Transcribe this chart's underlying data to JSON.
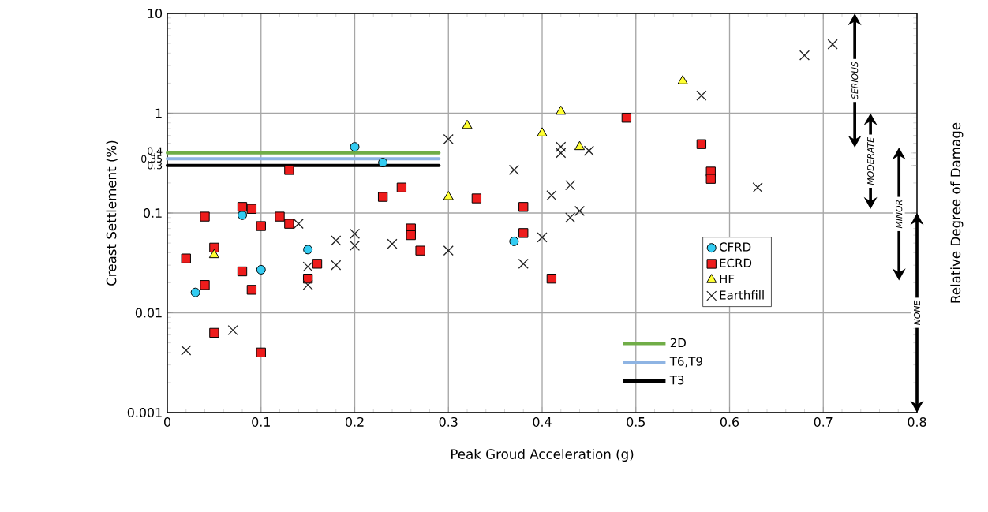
{
  "chart_data": {
    "type": "scatter",
    "xlabel": "Peak Groud Acceleration (g)",
    "ylabel": "Creast Settlement (%)",
    "y2label": "Relative Degree of Damage",
    "xlim": [
      0,
      0.8
    ],
    "ylim": [
      0.001,
      10
    ],
    "log": "y",
    "grid": true,
    "legend": "bottom right",
    "xticks": [
      0,
      0.1,
      0.2,
      0.3,
      0.4,
      0.5,
      0.6,
      0.7,
      0.8
    ],
    "yticks": [
      0.001,
      0.01,
      0.1,
      1,
      10,
      0.3,
      0.35,
      0.4
    ],
    "series": [
      {
        "name": "CFRD",
        "type": "scatter",
        "marker": "circle",
        "color": "#33ccf2",
        "x": [
          0.03,
          0.08,
          0.1,
          0.15,
          0.2,
          0.23,
          0.37
        ],
        "values": [
          0.016,
          0.095,
          0.027,
          0.043,
          0.46,
          0.32,
          0.052
        ]
      },
      {
        "name": "ECRD",
        "type": "scatter",
        "marker": "square",
        "color": "#ee1c1c",
        "x": [
          0.02,
          0.04,
          0.05,
          0.04,
          0.05,
          0.08,
          0.09,
          0.08,
          0.09,
          0.1,
          0.1,
          0.13,
          0.12,
          0.13,
          0.15,
          0.16,
          0.23,
          0.25,
          0.26,
          0.26,
          0.27,
          0.33,
          0.38,
          0.38,
          0.41,
          0.49,
          0.57,
          0.58,
          0.58
        ],
        "values": [
          0.035,
          0.092,
          0.045,
          0.019,
          0.0063,
          0.115,
          0.11,
          0.026,
          0.017,
          0.074,
          0.004,
          0.27,
          0.092,
          0.078,
          0.022,
          0.031,
          0.145,
          0.18,
          0.07,
          0.06,
          0.042,
          0.14,
          0.115,
          0.063,
          0.022,
          0.9,
          0.49,
          0.26,
          0.22
        ]
      },
      {
        "name": "HF",
        "type": "scatter",
        "marker": "triangle",
        "color": "#ffff33",
        "x": [
          0.05,
          0.3,
          0.32,
          0.4,
          0.42,
          0.44,
          0.55
        ],
        "values": [
          0.038,
          0.145,
          0.75,
          0.63,
          1.04,
          0.46,
          2.1
        ]
      },
      {
        "name": "Earthfill",
        "type": "scatter",
        "marker": "cross",
        "color": "#222222",
        "x": [
          0.02,
          0.07,
          0.14,
          0.15,
          0.15,
          0.18,
          0.18,
          0.2,
          0.2,
          0.24,
          0.3,
          0.3,
          0.37,
          0.38,
          0.4,
          0.41,
          0.42,
          0.42,
          0.43,
          0.43,
          0.44,
          0.45,
          0.57,
          0.63,
          0.68,
          0.71
        ],
        "values": [
          0.0042,
          0.0067,
          0.078,
          0.029,
          0.019,
          0.03,
          0.053,
          0.062,
          0.047,
          0.049,
          0.042,
          0.55,
          0.27,
          0.031,
          0.057,
          0.15,
          0.46,
          0.4,
          0.19,
          0.09,
          0.105,
          0.42,
          1.5,
          0.18,
          3.8,
          4.9
        ]
      },
      {
        "name": "2D",
        "type": "line",
        "line_style": "solid",
        "color": "#70ad47",
        "x": [
          0,
          0.29
        ],
        "values": [
          0.4,
          0.4
        ]
      },
      {
        "name": "T6,T9",
        "type": "line",
        "line_style": "solid",
        "color": "#8eb4e3",
        "x": [
          0,
          0.29
        ],
        "values": [
          0.35,
          0.35
        ]
      },
      {
        "name": "T3",
        "type": "line",
        "line_style": "solid",
        "color": "#000000",
        "x": [
          0,
          0.29
        ],
        "values": [
          0.3,
          0.3
        ]
      }
    ],
    "annotations": [
      "SERIOUS",
      "MODERATE",
      "MINOR",
      "NONE"
    ]
  }
}
